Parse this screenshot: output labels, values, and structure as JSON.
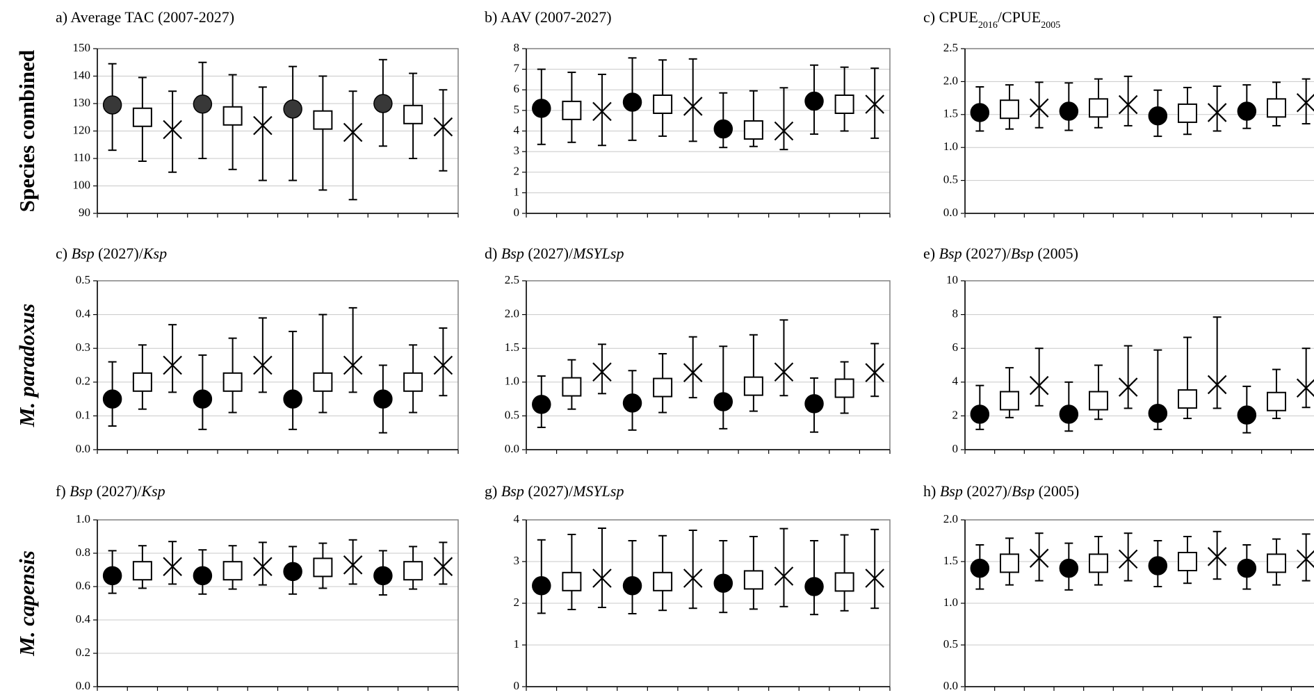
{
  "row_labels": [
    "Species combined",
    "M. paradoxus",
    "M. capensis"
  ],
  "chart_data": [
    {
      "type": "scatter",
      "row": 0,
      "col": 0,
      "title_segments": [
        {
          "t": "a) Average TAC (2007-2027)"
        }
      ],
      "ylim": [
        90,
        150
      ],
      "yticks": [
        "90",
        "100",
        "110",
        "120",
        "130",
        "140",
        "150"
      ],
      "grid": true,
      "series": [
        {
          "marker": "circle-grey",
          "points": [
            {
              "y": 129.5,
              "lo": 113,
              "hi": 144.5
            },
            {
              "y": 129.8,
              "lo": 110,
              "hi": 145
            },
            {
              "y": 128,
              "lo": 102,
              "hi": 143.5
            },
            {
              "y": 130,
              "lo": 114.5,
              "hi": 146
            }
          ]
        },
        {
          "marker": "square",
          "points": [
            {
              "y": 125,
              "lo": 109,
              "hi": 139.5
            },
            {
              "y": 125.5,
              "lo": 106,
              "hi": 140.5
            },
            {
              "y": 124,
              "lo": 98.5,
              "hi": 140
            },
            {
              "y": 126,
              "lo": 110,
              "hi": 141
            }
          ]
        },
        {
          "marker": "x",
          "points": [
            {
              "y": 120.5,
              "lo": 105,
              "hi": 134.5
            },
            {
              "y": 122,
              "lo": 102,
              "hi": 136
            },
            {
              "y": 119.5,
              "lo": 95,
              "hi": 134.5
            },
            {
              "y": 121.5,
              "lo": 105.5,
              "hi": 135
            }
          ]
        }
      ]
    },
    {
      "type": "scatter",
      "row": 0,
      "col": 1,
      "title_segments": [
        {
          "t": "b) AAV (2007-2027)"
        }
      ],
      "ylim": [
        0,
        8
      ],
      "yticks": [
        "0",
        "1",
        "2",
        "3",
        "4",
        "5",
        "6",
        "7",
        "8"
      ],
      "grid": true,
      "series": [
        {
          "marker": "circle",
          "points": [
            {
              "y": 5.1,
              "lo": 3.35,
              "hi": 7.0
            },
            {
              "y": 5.4,
              "lo": 3.55,
              "hi": 7.55
            },
            {
              "y": 4.1,
              "lo": 3.2,
              "hi": 5.85
            },
            {
              "y": 5.45,
              "lo": 3.85,
              "hi": 7.2
            }
          ]
        },
        {
          "marker": "square",
          "points": [
            {
              "y": 5.0,
              "lo": 3.45,
              "hi": 6.85
            },
            {
              "y": 5.3,
              "lo": 3.75,
              "hi": 7.45
            },
            {
              "y": 4.05,
              "lo": 3.25,
              "hi": 5.95
            },
            {
              "y": 5.3,
              "lo": 4.0,
              "hi": 7.1
            }
          ]
        },
        {
          "marker": "x",
          "points": [
            {
              "y": 4.95,
              "lo": 3.3,
              "hi": 6.75
            },
            {
              "y": 5.2,
              "lo": 3.5,
              "hi": 7.5
            },
            {
              "y": 4.0,
              "lo": 3.1,
              "hi": 6.1
            },
            {
              "y": 5.3,
              "lo": 3.65,
              "hi": 7.05
            }
          ]
        }
      ]
    },
    {
      "type": "scatter",
      "row": 0,
      "col": 2,
      "title_segments": [
        {
          "t": "c) CPUE"
        },
        {
          "t": "2016",
          "sub": true
        },
        {
          "t": "/CPUE"
        },
        {
          "t": "2005",
          "sub": true
        }
      ],
      "ylim": [
        0,
        2.5
      ],
      "yticks": [
        "0.0",
        "0.5",
        "1.0",
        "1.5",
        "2.0",
        "2.5"
      ],
      "grid": true,
      "series": [
        {
          "marker": "circle",
          "points": [
            {
              "y": 1.53,
              "lo": 1.25,
              "hi": 1.92
            },
            {
              "y": 1.55,
              "lo": 1.26,
              "hi": 1.98
            },
            {
              "y": 1.48,
              "lo": 1.17,
              "hi": 1.87
            },
            {
              "y": 1.55,
              "lo": 1.29,
              "hi": 1.95
            }
          ]
        },
        {
          "marker": "square",
          "points": [
            {
              "y": 1.58,
              "lo": 1.28,
              "hi": 1.95
            },
            {
              "y": 1.6,
              "lo": 1.3,
              "hi": 2.04
            },
            {
              "y": 1.52,
              "lo": 1.2,
              "hi": 1.91
            },
            {
              "y": 1.6,
              "lo": 1.33,
              "hi": 1.99
            }
          ]
        },
        {
          "marker": "x",
          "points": [
            {
              "y": 1.6,
              "lo": 1.3,
              "hi": 1.99
            },
            {
              "y": 1.65,
              "lo": 1.33,
              "hi": 2.08
            },
            {
              "y": 1.53,
              "lo": 1.25,
              "hi": 1.93
            },
            {
              "y": 1.68,
              "lo": 1.36,
              "hi": 2.04
            }
          ]
        }
      ]
    },
    {
      "type": "scatter",
      "row": 1,
      "col": 0,
      "title_segments": [
        {
          "t": "c) "
        },
        {
          "t": "Bsp",
          "it": true
        },
        {
          "t": " (2027)/"
        },
        {
          "t": "Ksp",
          "it": true
        }
      ],
      "ylim": [
        0,
        0.5
      ],
      "yticks": [
        "0.0",
        "0.1",
        "0.2",
        "0.3",
        "0.4",
        "0.5"
      ],
      "grid": true,
      "series": [
        {
          "marker": "circle",
          "points": [
            {
              "y": 0.15,
              "lo": 0.07,
              "hi": 0.26
            },
            {
              "y": 0.15,
              "lo": 0.06,
              "hi": 0.28
            },
            {
              "y": 0.15,
              "lo": 0.06,
              "hi": 0.35
            },
            {
              "y": 0.15,
              "lo": 0.05,
              "hi": 0.25
            }
          ]
        },
        {
          "marker": "square",
          "points": [
            {
              "y": 0.2,
              "lo": 0.12,
              "hi": 0.31
            },
            {
              "y": 0.2,
              "lo": 0.11,
              "hi": 0.33
            },
            {
              "y": 0.2,
              "lo": 0.11,
              "hi": 0.4
            },
            {
              "y": 0.2,
              "lo": 0.11,
              "hi": 0.31
            }
          ]
        },
        {
          "marker": "x",
          "points": [
            {
              "y": 0.25,
              "lo": 0.17,
              "hi": 0.37
            },
            {
              "y": 0.25,
              "lo": 0.17,
              "hi": 0.39
            },
            {
              "y": 0.25,
              "lo": 0.17,
              "hi": 0.42
            },
            {
              "y": 0.25,
              "lo": 0.16,
              "hi": 0.36
            }
          ]
        }
      ]
    },
    {
      "type": "scatter",
      "row": 1,
      "col": 1,
      "title_segments": [
        {
          "t": "d) "
        },
        {
          "t": "Bsp",
          "it": true
        },
        {
          "t": " (2027)/"
        },
        {
          "t": "MSYLsp",
          "it": true
        }
      ],
      "ylim": [
        0,
        2.5
      ],
      "yticks": [
        "0.0",
        "0.5",
        "1.0",
        "1.5",
        "2.0",
        "2.5"
      ],
      "grid": true,
      "series": [
        {
          "marker": "circle",
          "points": [
            {
              "y": 0.67,
              "lo": 0.33,
              "hi": 1.09
            },
            {
              "y": 0.69,
              "lo": 0.29,
              "hi": 1.17
            },
            {
              "y": 0.71,
              "lo": 0.31,
              "hi": 1.53
            },
            {
              "y": 0.68,
              "lo": 0.26,
              "hi": 1.06
            }
          ]
        },
        {
          "marker": "square",
          "points": [
            {
              "y": 0.93,
              "lo": 0.6,
              "hi": 1.33
            },
            {
              "y": 0.92,
              "lo": 0.55,
              "hi": 1.42
            },
            {
              "y": 0.94,
              "lo": 0.57,
              "hi": 1.7
            },
            {
              "y": 0.91,
              "lo": 0.54,
              "hi": 1.3
            }
          ]
        },
        {
          "marker": "x",
          "points": [
            {
              "y": 1.15,
              "lo": 0.83,
              "hi": 1.56
            },
            {
              "y": 1.14,
              "lo": 0.77,
              "hi": 1.67
            },
            {
              "y": 1.15,
              "lo": 0.8,
              "hi": 1.92
            },
            {
              "y": 1.14,
              "lo": 0.79,
              "hi": 1.57
            }
          ]
        }
      ]
    },
    {
      "type": "scatter",
      "row": 1,
      "col": 2,
      "title_segments": [
        {
          "t": "e) "
        },
        {
          "t": "Bsp",
          "it": true
        },
        {
          "t": " (2027)/"
        },
        {
          "t": "Bsp",
          "it": true
        },
        {
          "t": " (2005)"
        }
      ],
      "ylim": [
        0,
        10
      ],
      "yticks": [
        "0",
        "2",
        "4",
        "6",
        "8",
        "10"
      ],
      "grid": true,
      "series": [
        {
          "marker": "circle",
          "points": [
            {
              "y": 2.1,
              "lo": 1.2,
              "hi": 3.8
            },
            {
              "y": 2.1,
              "lo": 1.1,
              "hi": 4.0
            },
            {
              "y": 2.15,
              "lo": 1.2,
              "hi": 5.9
            },
            {
              "y": 2.05,
              "lo": 1.0,
              "hi": 3.75
            }
          ]
        },
        {
          "marker": "square",
          "points": [
            {
              "y": 2.9,
              "lo": 1.9,
              "hi": 4.85
            },
            {
              "y": 2.9,
              "lo": 1.8,
              "hi": 5.0
            },
            {
              "y": 3.0,
              "lo": 1.85,
              "hi": 6.65
            },
            {
              "y": 2.85,
              "lo": 1.85,
              "hi": 4.75
            }
          ]
        },
        {
          "marker": "x",
          "points": [
            {
              "y": 3.8,
              "lo": 2.6,
              "hi": 6.0
            },
            {
              "y": 3.7,
              "lo": 2.45,
              "hi": 6.15
            },
            {
              "y": 3.85,
              "lo": 2.45,
              "hi": 7.85
            },
            {
              "y": 3.65,
              "lo": 2.5,
              "hi": 6.0
            }
          ]
        }
      ]
    },
    {
      "type": "scatter",
      "row": 2,
      "col": 0,
      "title_segments": [
        {
          "t": "f) "
        },
        {
          "t": "Bsp",
          "it": true
        },
        {
          "t": " (2027)/"
        },
        {
          "t": "Ksp",
          "it": true
        }
      ],
      "ylim": [
        0,
        1.0
      ],
      "yticks": [
        "0.0",
        "0.2",
        "0.4",
        "0.6",
        "0.8",
        "1.0"
      ],
      "grid": true,
      "series": [
        {
          "marker": "circle",
          "points": [
            {
              "y": 0.665,
              "lo": 0.56,
              "hi": 0.815
            },
            {
              "y": 0.665,
              "lo": 0.555,
              "hi": 0.82
            },
            {
              "y": 0.69,
              "lo": 0.555,
              "hi": 0.84
            },
            {
              "y": 0.665,
              "lo": 0.55,
              "hi": 0.815
            }
          ]
        },
        {
          "marker": "square",
          "points": [
            {
              "y": 0.695,
              "lo": 0.59,
              "hi": 0.845
            },
            {
              "y": 0.695,
              "lo": 0.585,
              "hi": 0.845
            },
            {
              "y": 0.715,
              "lo": 0.59,
              "hi": 0.86
            },
            {
              "y": 0.695,
              "lo": 0.585,
              "hi": 0.84
            }
          ]
        },
        {
          "marker": "x",
          "points": [
            {
              "y": 0.72,
              "lo": 0.615,
              "hi": 0.87
            },
            {
              "y": 0.72,
              "lo": 0.61,
              "hi": 0.865
            },
            {
              "y": 0.73,
              "lo": 0.615,
              "hi": 0.88
            },
            {
              "y": 0.72,
              "lo": 0.615,
              "hi": 0.865
            }
          ]
        }
      ]
    },
    {
      "type": "scatter",
      "row": 2,
      "col": 1,
      "title_segments": [
        {
          "t": "g) "
        },
        {
          "t": "Bsp",
          "it": true
        },
        {
          "t": " (2027)/"
        },
        {
          "t": "MSYLsp",
          "it": true
        }
      ],
      "ylim": [
        0,
        4
      ],
      "yticks": [
        "0",
        "1",
        "2",
        "3",
        "4"
      ],
      "grid": true,
      "series": [
        {
          "marker": "circle",
          "points": [
            {
              "y": 2.42,
              "lo": 1.76,
              "hi": 3.52
            },
            {
              "y": 2.42,
              "lo": 1.75,
              "hi": 3.5
            },
            {
              "y": 2.48,
              "lo": 1.78,
              "hi": 3.5
            },
            {
              "y": 2.4,
              "lo": 1.73,
              "hi": 3.5
            }
          ]
        },
        {
          "marker": "square",
          "points": [
            {
              "y": 2.52,
              "lo": 1.85,
              "hi": 3.65
            },
            {
              "y": 2.52,
              "lo": 1.83,
              "hi": 3.62
            },
            {
              "y": 2.56,
              "lo": 1.86,
              "hi": 3.6
            },
            {
              "y": 2.51,
              "lo": 1.82,
              "hi": 3.64
            }
          ]
        },
        {
          "marker": "x",
          "points": [
            {
              "y": 2.6,
              "lo": 1.9,
              "hi": 3.8
            },
            {
              "y": 2.6,
              "lo": 1.88,
              "hi": 3.75
            },
            {
              "y": 2.65,
              "lo": 1.92,
              "hi": 3.79
            },
            {
              "y": 2.6,
              "lo": 1.88,
              "hi": 3.77
            }
          ]
        }
      ]
    },
    {
      "type": "scatter",
      "row": 2,
      "col": 2,
      "title_segments": [
        {
          "t": "h) "
        },
        {
          "t": "Bsp",
          "it": true
        },
        {
          "t": " (2027)/"
        },
        {
          "t": "Bsp",
          "it": true
        },
        {
          "t": " (2005)"
        }
      ],
      "ylim": [
        0,
        2.0
      ],
      "yticks": [
        "0.0",
        "0.5",
        "1.0",
        "1.5",
        "2.0"
      ],
      "grid": true,
      "series": [
        {
          "marker": "circle",
          "points": [
            {
              "y": 1.42,
              "lo": 1.17,
              "hi": 1.7
            },
            {
              "y": 1.42,
              "lo": 1.16,
              "hi": 1.72
            },
            {
              "y": 1.45,
              "lo": 1.2,
              "hi": 1.75
            },
            {
              "y": 1.42,
              "lo": 1.17,
              "hi": 1.7
            }
          ]
        },
        {
          "marker": "square",
          "points": [
            {
              "y": 1.48,
              "lo": 1.22,
              "hi": 1.78
            },
            {
              "y": 1.48,
              "lo": 1.22,
              "hi": 1.8
            },
            {
              "y": 1.5,
              "lo": 1.24,
              "hi": 1.8
            },
            {
              "y": 1.48,
              "lo": 1.22,
              "hi": 1.77
            }
          ]
        },
        {
          "marker": "x",
          "points": [
            {
              "y": 1.54,
              "lo": 1.27,
              "hi": 1.84
            },
            {
              "y": 1.53,
              "lo": 1.27,
              "hi": 1.84
            },
            {
              "y": 1.56,
              "lo": 1.29,
              "hi": 1.86
            },
            {
              "y": 1.53,
              "lo": 1.27,
              "hi": 1.83
            }
          ]
        }
      ]
    }
  ]
}
